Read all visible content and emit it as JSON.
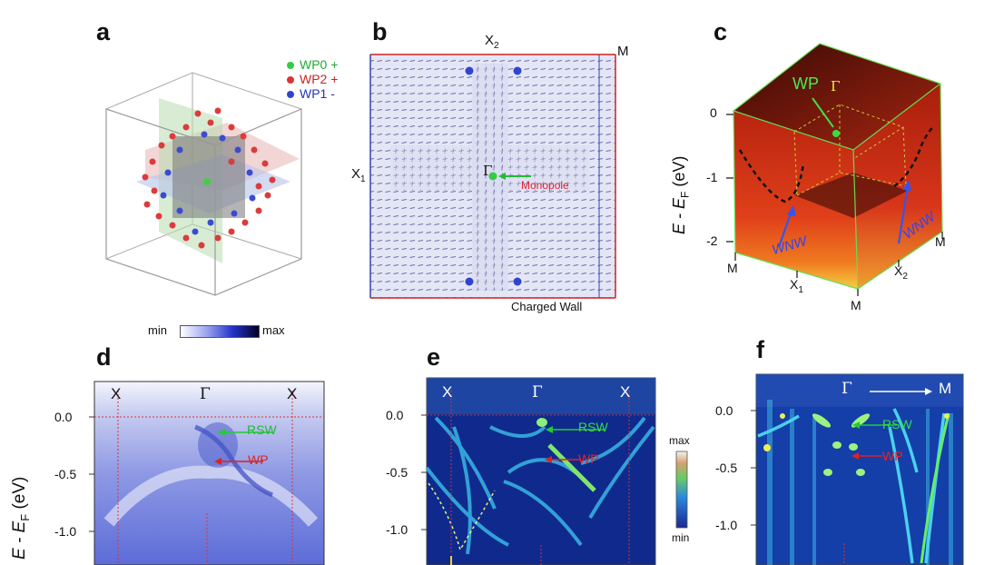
{
  "figure": {
    "panels": {
      "a": {
        "label": "a",
        "legend": [
          {
            "text": "WP0 +",
            "color": "#33cc44"
          },
          {
            "text": "WP2 +",
            "color": "#dd3333"
          },
          {
            "text": "WP1 -",
            "color": "#3344cc"
          }
        ],
        "colorbar": {
          "min": "min",
          "max": "max"
        }
      },
      "b": {
        "label": "b",
        "x2": "X",
        "x2_sub": "2",
        "m": "M",
        "x1": "X",
        "x1_sub": "1",
        "gamma": "Γ",
        "monopole": "Monopole",
        "charged_wall": "Charged Wall"
      },
      "c": {
        "label": "c",
        "wp": "WP",
        "gamma": "Γ",
        "ylabel": "E - E",
        "ylabel_sub": "F",
        "ylabel_unit": "(eV)",
        "yticks": [
          "0",
          "-1",
          "-2"
        ],
        "wnw_left": "WNW",
        "wnw_right": "WNW",
        "m_left": "M",
        "x1": "X",
        "x1_sub": "1",
        "m_bottom": "M",
        "x2": "X",
        "x2_sub": "2",
        "m_right": "M"
      },
      "d": {
        "label": "d",
        "ylabel": "E - E",
        "ylabel_sub": "F",
        "ylabel_unit": "(eV)",
        "yticks": [
          "0.0",
          "-0.5",
          "-1.0"
        ],
        "xlabels": [
          "X",
          "Γ",
          "X"
        ],
        "rsw": "RSW",
        "wp": "WP"
      },
      "e": {
        "label": "e",
        "yticks": [
          "0.0",
          "-0.5",
          "-1.0"
        ],
        "xlabels": [
          "X",
          "Γ",
          "X"
        ],
        "rsw": "RSW",
        "wp": "WP",
        "colorbar": {
          "max": "max",
          "min": "min"
        }
      },
      "f": {
        "label": "f",
        "yticks": [
          "0.0",
          "-0.5",
          "-1.0"
        ],
        "gamma": "Γ",
        "m": "M",
        "rsw": "RSW",
        "wp": "WP"
      }
    }
  }
}
